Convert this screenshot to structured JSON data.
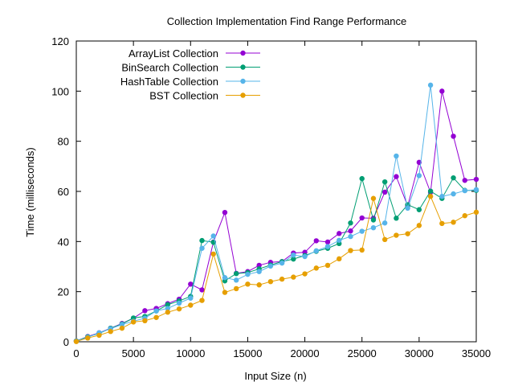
{
  "chart_data": {
    "type": "line",
    "title": "Collection Implementation Find Range Performance",
    "xlabel": "Input Size (n)",
    "ylabel": "Time (milliseconds)",
    "xlim": [
      0,
      35000
    ],
    "ylim": [
      0,
      120
    ],
    "xticks": [
      0,
      5000,
      10000,
      15000,
      20000,
      25000,
      30000,
      35000
    ],
    "yticks": [
      0,
      20,
      40,
      60,
      80,
      100,
      120
    ],
    "grid": false,
    "legend_position": "top-left",
    "x": [
      0,
      1000,
      2000,
      3000,
      4000,
      5000,
      6000,
      7000,
      8000,
      9000,
      10000,
      11000,
      12000,
      13000,
      14000,
      15000,
      16000,
      17000,
      18000,
      19000,
      20000,
      21000,
      22000,
      23000,
      24000,
      25000,
      26000,
      27000,
      28000,
      29000,
      30000,
      31000,
      32000,
      33000,
      34000,
      35000
    ],
    "series": [
      {
        "name": "ArrayList Collection",
        "color": "#9400d3",
        "values": [
          0.3,
          2.1,
          3.6,
          5.4,
          7.3,
          9.4,
          12.4,
          13.3,
          15.2,
          17.0,
          23.0,
          20.7,
          39.8,
          51.6,
          27.3,
          28.0,
          30.5,
          31.7,
          32.0,
          35.4,
          35.7,
          40.3,
          39.8,
          43.2,
          44.2,
          49.4,
          49.3,
          59.7,
          65.9,
          54.2,
          71.6,
          59.6,
          100.0,
          82.0,
          64.4,
          64.8
        ]
      },
      {
        "name": "BinSearch Collection",
        "color": "#009e73",
        "values": [
          0.3,
          2.0,
          3.3,
          5.4,
          7.1,
          9.5,
          10.1,
          12.3,
          14.8,
          16.3,
          18.1,
          40.4,
          39.7,
          24.3,
          27.2,
          27.6,
          29.1,
          30.6,
          32.0,
          33.0,
          34.4,
          36.1,
          37.3,
          39.2,
          47.4,
          65.1,
          48.6,
          63.8,
          49.3,
          54.7,
          52.7,
          60.1,
          57.2,
          65.4,
          60.4,
          60.4
        ]
      },
      {
        "name": "HashTable Collection",
        "color": "#56b4e9",
        "values": [
          0.2,
          1.8,
          3.6,
          5.2,
          6.9,
          8.2,
          9.4,
          12.3,
          13.3,
          15.4,
          17.4,
          37.3,
          42.2,
          25.6,
          24.6,
          26.9,
          28.0,
          30.2,
          31.4,
          34.6,
          34.0,
          36.3,
          38.0,
          40.5,
          42.0,
          44.1,
          45.5,
          47.4,
          74.1,
          53.3,
          66.3,
          102.4,
          58.0,
          59.0,
          60.3,
          60.7
        ]
      },
      {
        "name": "BST Collection",
        "color": "#e69f00",
        "values": [
          0.1,
          1.5,
          2.6,
          4.1,
          5.4,
          7.9,
          8.4,
          9.7,
          11.8,
          13.1,
          14.6,
          16.5,
          35.0,
          19.7,
          21.2,
          23.0,
          22.7,
          24.0,
          25.0,
          25.8,
          27.1,
          29.4,
          30.5,
          33.1,
          36.4,
          36.6,
          57.2,
          40.8,
          42.5,
          43.1,
          46.4,
          58.0,
          47.2,
          47.7,
          50.3,
          51.7
        ]
      }
    ]
  }
}
